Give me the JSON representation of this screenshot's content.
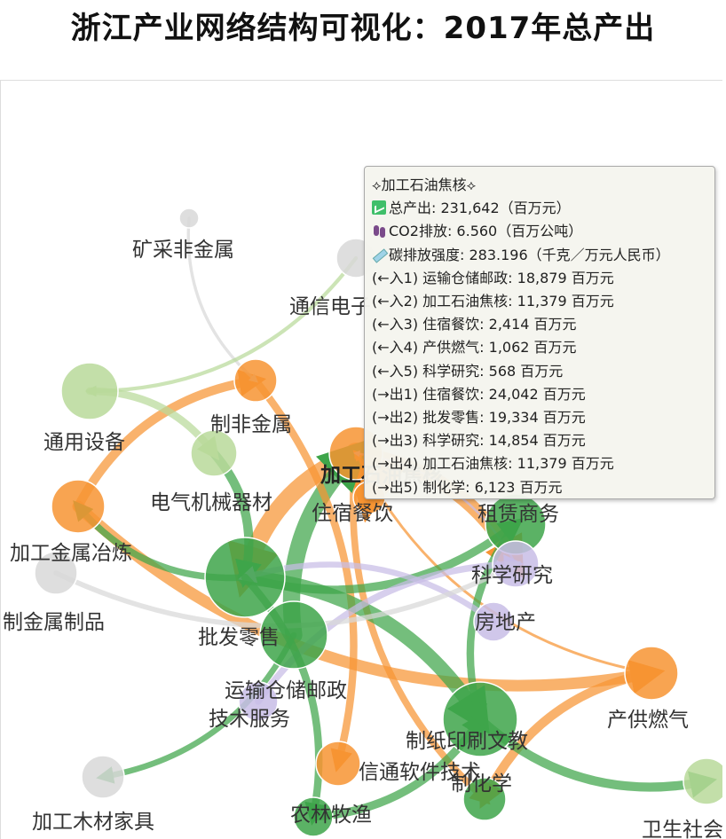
{
  "title": "浙江产业网络结构可视化：2017年总产出",
  "tooltip": {
    "header": "⟡加工石油焦核⟡",
    "lines": [
      {
        "icon": "chart-icon",
        "text": "总产出: 231,642（百万元）"
      },
      {
        "icon": "footprints-icon",
        "text": "CO2排放: 6.560（百万公吨）"
      },
      {
        "icon": "syringe-icon",
        "text": "碳排放强度: 283.196（千克／万元人民币）"
      },
      {
        "text": "(←入1) 运输仓储邮政: 18,879 百万元"
      },
      {
        "text": "(←入2) 加工石油焦核: 11,379 百万元"
      },
      {
        "text": "(←入3) 住宿餐饮: 2,414 百万元"
      },
      {
        "text": "(←入4) 产供燃气: 1,062 百万元"
      },
      {
        "text": "(←入5) 科学研究: 568 百万元"
      },
      {
        "text": "(→出1) 住宿餐饮: 24,042 百万元"
      },
      {
        "text": "(→出2) 批发零售: 19,334 百万元"
      },
      {
        "text": "(→出3) 科学研究: 14,854 百万元"
      },
      {
        "text": "(→出4) 加工石油焦核: 11,379 百万元"
      },
      {
        "text": "(→出5) 制化学: 6,123 百万元"
      }
    ]
  },
  "colors": {
    "orange": "#f79433",
    "green": "#3ea54a",
    "lightgreen": "#b9d99a",
    "lavender": "#c8bde6",
    "gray": "#d8d8d8"
  },
  "nodes": [
    {
      "id": "mining",
      "label": "矿采非金属",
      "color": "gray",
      "bold": false
    },
    {
      "id": "telecom",
      "label": "通信电子",
      "color": "gray",
      "bold": false
    },
    {
      "id": "general",
      "label": "通用设备",
      "color": "lightgreen",
      "bold": false
    },
    {
      "id": "nonmetal",
      "label": "制非金属",
      "color": "orange",
      "bold": false
    },
    {
      "id": "petro",
      "label": "加工石油焦核",
      "color": "orange",
      "bold": true
    },
    {
      "id": "electric",
      "label": "电气机械器材",
      "color": "lightgreen",
      "bold": false
    },
    {
      "id": "lodging",
      "label": "住宿餐饮",
      "color": "orange",
      "bold": false
    },
    {
      "id": "leasing",
      "label": "租赁商务",
      "color": "green",
      "bold": false
    },
    {
      "id": "smelt",
      "label": "加工金属冶炼",
      "color": "orange",
      "bold": false
    },
    {
      "id": "science",
      "label": "科学研究",
      "color": "lavender",
      "bold": false
    },
    {
      "id": "metalprod",
      "label": "制金属制品",
      "color": "gray",
      "bold": false
    },
    {
      "id": "wholesale",
      "label": "批发零售",
      "color": "green",
      "bold": false
    },
    {
      "id": "realestate",
      "label": "房地产",
      "color": "lavender",
      "bold": false
    },
    {
      "id": "transport",
      "label": "运输仓储邮政",
      "color": "green",
      "bold": false
    },
    {
      "id": "techservice",
      "label": "技术服务",
      "color": "lavender",
      "bold": false
    },
    {
      "id": "gas",
      "label": "产供燃气",
      "color": "orange",
      "bold": false
    },
    {
      "id": "paper",
      "label": "制纸印刷文教",
      "color": "green",
      "bold": false
    },
    {
      "id": "software",
      "label": "信通软件技术",
      "color": "orange",
      "bold": false
    },
    {
      "id": "chemical",
      "label": "制化学",
      "color": "green",
      "bold": false
    },
    {
      "id": "wood",
      "label": "加工木材家具",
      "color": "gray",
      "bold": false
    },
    {
      "id": "agri",
      "label": "农林牧渔",
      "color": "green",
      "bold": false
    },
    {
      "id": "health",
      "label": "卫生社会",
      "color": "lightgreen",
      "bold": false
    }
  ],
  "links": [
    {
      "source": "petro",
      "target": "lodging",
      "value": 24042,
      "color": "orange"
    },
    {
      "source": "petro",
      "target": "wholesale",
      "value": 19334,
      "color": "orange"
    },
    {
      "source": "petro",
      "target": "science",
      "value": 14854,
      "color": "orange"
    },
    {
      "source": "petro",
      "target": "chemical",
      "value": 6123,
      "color": "orange"
    },
    {
      "source": "transport",
      "target": "petro",
      "value": 18879,
      "color": "green"
    },
    {
      "source": "lodging",
      "target": "petro",
      "value": 2414,
      "color": "orange"
    },
    {
      "source": "gas",
      "target": "petro",
      "value": 1062,
      "color": "orange"
    },
    {
      "source": "science",
      "target": "petro",
      "value": 568,
      "color": "lavender"
    },
    {
      "source": "smelt",
      "target": "nonmetal",
      "value": 9000,
      "color": "orange"
    },
    {
      "source": "smelt",
      "target": "gas",
      "value": 12000,
      "color": "orange"
    },
    {
      "source": "nonmetal",
      "target": "software",
      "value": 7000,
      "color": "orange"
    },
    {
      "source": "gas",
      "target": "chemical",
      "value": 9000,
      "color": "orange"
    },
    {
      "source": "wholesale",
      "target": "paper",
      "value": 16000,
      "color": "green"
    },
    {
      "source": "wholesale",
      "target": "leasing",
      "value": 8000,
      "color": "green"
    },
    {
      "source": "wholesale",
      "target": "smelt",
      "value": 6000,
      "color": "green"
    },
    {
      "source": "paper",
      "target": "health",
      "value": 9000,
      "color": "green"
    },
    {
      "source": "transport",
      "target": "wood",
      "value": 5000,
      "color": "green"
    },
    {
      "source": "agri",
      "target": "paper",
      "value": 8000,
      "color": "green"
    },
    {
      "source": "electric",
      "target": "wholesale",
      "value": 9000,
      "color": "green"
    },
    {
      "source": "leasing",
      "target": "paper",
      "value": 7000,
      "color": "green"
    },
    {
      "source": "techservice",
      "target": "science",
      "value": 6000,
      "color": "lavender"
    },
    {
      "source": "realestate",
      "target": "wholesale",
      "value": 5000,
      "color": "lavender"
    },
    {
      "source": "general",
      "target": "electric",
      "value": 7000,
      "color": "lightgreen"
    },
    {
      "source": "mining",
      "target": "nonmetal",
      "value": 1500,
      "color": "gray"
    },
    {
      "source": "telecom",
      "target": "general",
      "value": 2500,
      "color": "lightgreen"
    },
    {
      "source": "metalprod",
      "target": "science",
      "value": 4000,
      "color": "gray"
    },
    {
      "source": "wholesale",
      "target": "agri",
      "value": 7000,
      "color": "green"
    }
  ]
}
